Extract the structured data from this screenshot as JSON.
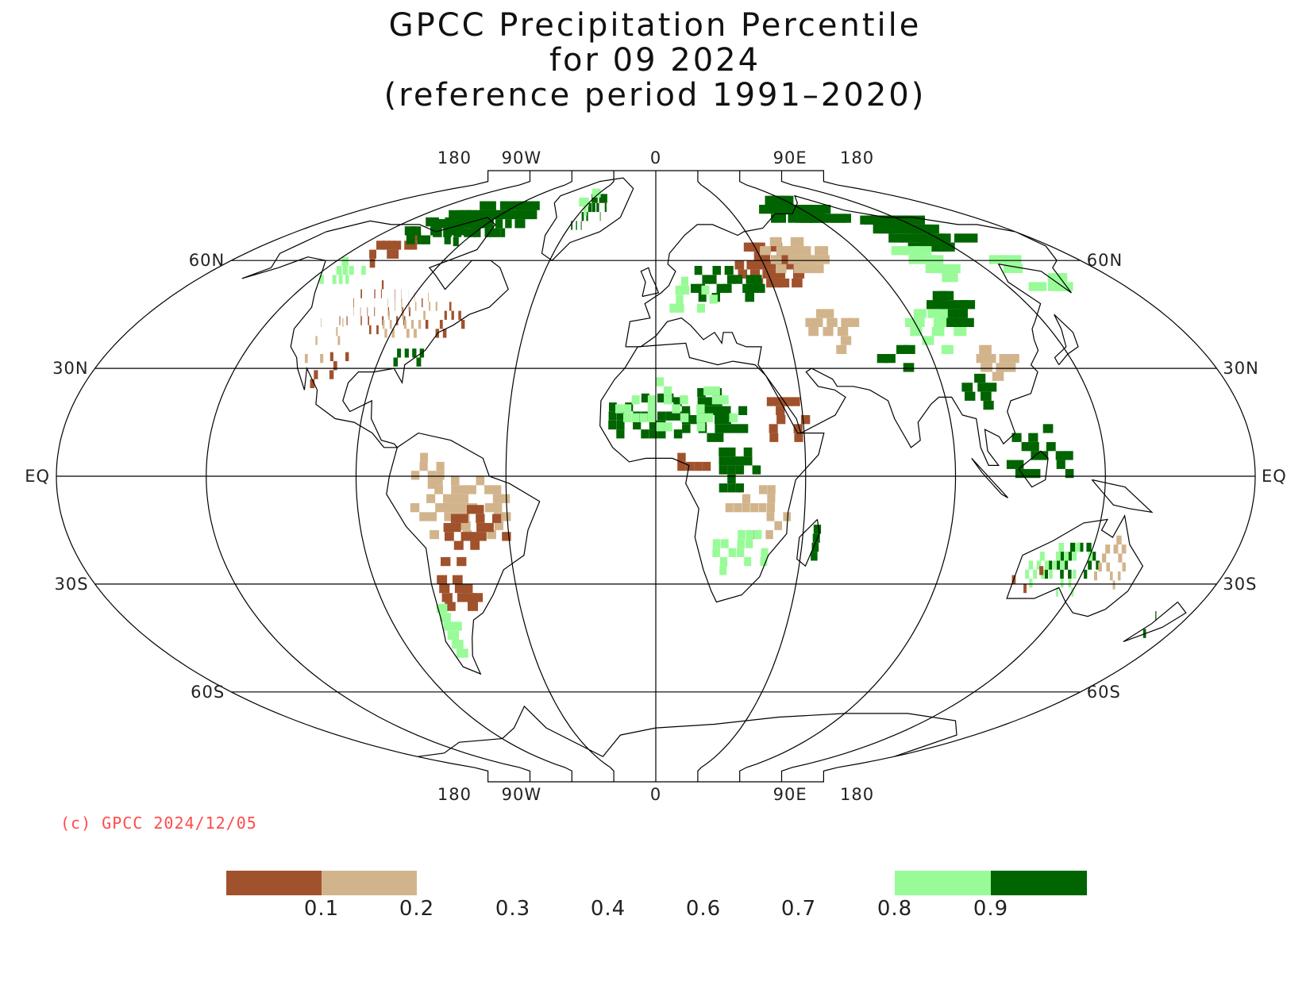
{
  "title": {
    "line1": "GPCC Precipitation Percentile",
    "line2": "for 09 2024",
    "line3": "(reference period 1991–2020)"
  },
  "axes": {
    "longitude_labels": [
      "180",
      "90W",
      "0",
      "90E",
      "180"
    ],
    "latitude_labels_left": [
      "60N",
      "30N",
      "EQ",
      "30S",
      "60S"
    ],
    "latitude_labels_right": [
      "60N",
      "30N",
      "EQ",
      "30S",
      "60S"
    ],
    "projection": "Robinson-like (pseudocylindrical)",
    "grid": true
  },
  "copyright": "(c) GPCC 2024/12/05",
  "legend": {
    "colors": {
      "very_dry": "#a0522d",
      "dry": "#d2b48c",
      "wet": "#98fb98",
      "very_wet": "#006400"
    },
    "tick_labels": [
      "0.1",
      "0.2",
      "0.3",
      "0.4",
      "0.6",
      "0.7",
      "0.8",
      "0.9"
    ]
  },
  "chart_data": {
    "type": "heatmap",
    "variable": "precipitation percentile",
    "period": "09 2024",
    "classes": [
      {
        "range": [
          0.0,
          0.1
        ],
        "color": "#a0522d"
      },
      {
        "range": [
          0.1,
          0.2
        ],
        "color": "#d2b48c"
      },
      {
        "range": [
          0.8,
          0.9
        ],
        "color": "#98fb98"
      },
      {
        "range": [
          0.9,
          1.0
        ],
        "color": "#006400"
      }
    ],
    "regions": [
      {
        "region": "Central United States",
        "class": "0.0-0.2"
      },
      {
        "region": "Canada / Alaska",
        "class": "0.8-1.0"
      },
      {
        "region": "Sahel / West Africa",
        "class": "0.9-1.0"
      },
      {
        "region": "Eastern Europe / Western Russia",
        "class": "0.0-0.2"
      },
      {
        "region": "Northern Siberia",
        "class": "0.9-1.0"
      },
      {
        "region": "Northeast China",
        "class": "0.9-1.0"
      },
      {
        "region": "Brazil / South America interior",
        "class": "0.0-0.2"
      },
      {
        "region": "Central Africa (Congo)",
        "class": "0.9-1.0"
      },
      {
        "region": "Central Australia",
        "class": "0.9-1.0"
      },
      {
        "region": "Southern Australia",
        "class": "0.0-0.2"
      }
    ]
  }
}
